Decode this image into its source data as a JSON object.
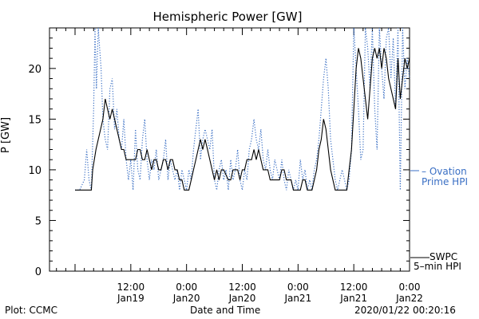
{
  "chart_data": {
    "type": "line",
    "title": "Hemispheric Power [GW]",
    "xlabel": "Date and Time",
    "ylabel": "P [GW]",
    "ylim": [
      0,
      24
    ],
    "yticks": [
      0,
      5,
      10,
      15,
      20
    ],
    "xlim_hours": [
      0,
      60
    ],
    "x_unit": "hours since 2020-01-19 00:00 UT (first plotted time ≈ Jan18 18:30)",
    "xticks": [
      {
        "hour": 12,
        "label_time": "12:00",
        "label_date": "Jan19"
      },
      {
        "hour": 24,
        "label_time": "0:00",
        "label_date": "Jan20"
      },
      {
        "hour": 36,
        "label_time": "12:00",
        "label_date": "Jan20"
      },
      {
        "hour": 48,
        "label_time": "0:00",
        "label_date": "Jan21"
      },
      {
        "hour": 60,
        "label_time": "12:00",
        "label_date": "Jan21"
      },
      {
        "hour": 72,
        "label_time": "0:00",
        "label_date": "Jan22"
      }
    ],
    "legend_placement": "right",
    "grid": false,
    "series": [
      {
        "name": "Ovation Prime HPI",
        "style": "dotted",
        "color": "#3a6fc4",
        "points": [
          [
            0,
            8
          ],
          [
            1,
            8
          ],
          [
            2,
            9
          ],
          [
            2.5,
            12
          ],
          [
            3,
            9
          ],
          [
            3.5,
            8
          ],
          [
            4,
            16
          ],
          [
            4.3,
            24
          ],
          [
            4.6,
            18
          ],
          [
            5,
            24
          ],
          [
            5.3,
            22
          ],
          [
            5.6,
            20
          ],
          [
            6,
            15
          ],
          [
            6.5,
            13
          ],
          [
            7,
            12
          ],
          [
            7.5,
            18
          ],
          [
            8,
            19
          ],
          [
            8.5,
            14
          ],
          [
            9,
            16
          ],
          [
            9.5,
            13
          ],
          [
            10,
            12
          ],
          [
            10.5,
            15
          ],
          [
            11,
            11
          ],
          [
            11.5,
            9
          ],
          [
            12,
            11
          ],
          [
            12.5,
            8
          ],
          [
            13,
            14
          ],
          [
            13.5,
            10
          ],
          [
            14,
            9
          ],
          [
            14.5,
            13
          ],
          [
            15,
            15
          ],
          [
            15.5,
            11
          ],
          [
            16,
            9
          ],
          [
            16.5,
            11
          ],
          [
            17,
            10
          ],
          [
            17.5,
            12
          ],
          [
            18,
            9
          ],
          [
            18.5,
            10
          ],
          [
            19,
            11
          ],
          [
            19.5,
            13
          ],
          [
            20,
            9
          ],
          [
            20.5,
            11
          ],
          [
            21,
            10
          ],
          [
            21.5,
            9
          ],
          [
            22,
            10
          ],
          [
            22.5,
            8
          ],
          [
            23,
            10
          ],
          [
            23.5,
            9
          ],
          [
            24,
            8
          ],
          [
            24.5,
            10
          ],
          [
            25,
            9
          ],
          [
            25.5,
            12
          ],
          [
            26,
            14
          ],
          [
            26.5,
            16
          ],
          [
            27,
            11
          ],
          [
            27.5,
            13
          ],
          [
            28,
            14
          ],
          [
            28.5,
            13
          ],
          [
            29,
            12
          ],
          [
            29.5,
            14
          ],
          [
            30,
            9
          ],
          [
            30.5,
            8
          ],
          [
            31,
            10
          ],
          [
            31.5,
            11
          ],
          [
            32,
            9
          ],
          [
            32.5,
            10
          ],
          [
            33,
            8
          ],
          [
            33.5,
            11
          ],
          [
            34,
            9
          ],
          [
            34.5,
            10
          ],
          [
            35,
            12
          ],
          [
            35.5,
            9
          ],
          [
            36,
            8
          ],
          [
            36.5,
            10
          ],
          [
            37,
            9
          ],
          [
            37.5,
            12
          ],
          [
            38,
            13
          ],
          [
            38.5,
            15
          ],
          [
            39,
            13
          ],
          [
            39.5,
            12
          ],
          [
            40,
            14
          ],
          [
            40.5,
            11
          ],
          [
            41,
            10
          ],
          [
            41.5,
            12
          ],
          [
            42,
            10
          ],
          [
            42.5,
            9
          ],
          [
            43,
            11
          ],
          [
            43.5,
            10
          ],
          [
            44,
            9
          ],
          [
            44.5,
            11
          ],
          [
            45,
            9
          ],
          [
            45.5,
            8
          ],
          [
            46,
            10
          ],
          [
            46.5,
            9
          ],
          [
            47,
            8
          ],
          [
            47.5,
            9
          ],
          [
            48,
            8
          ],
          [
            48.5,
            11
          ],
          [
            49,
            9
          ],
          [
            49.5,
            10
          ],
          [
            50,
            8
          ],
          [
            50.5,
            9
          ],
          [
            51,
            8
          ],
          [
            51.5,
            10
          ],
          [
            52,
            11
          ],
          [
            52.5,
            13
          ],
          [
            53,
            16
          ],
          [
            53.5,
            19
          ],
          [
            54,
            21
          ],
          [
            54.5,
            18
          ],
          [
            55,
            13
          ],
          [
            55.5,
            11
          ],
          [
            56,
            9
          ],
          [
            56.5,
            8
          ],
          [
            57,
            9
          ],
          [
            57.5,
            10
          ],
          [
            58,
            9
          ],
          [
            58.5,
            8
          ],
          [
            59,
            9
          ],
          [
            59.5,
            12
          ],
          [
            60,
            24
          ],
          [
            60.5,
            20
          ],
          [
            61,
            16
          ],
          [
            61.5,
            11
          ],
          [
            62,
            12
          ],
          [
            62.5,
            24
          ],
          [
            63,
            22
          ],
          [
            63.5,
            18
          ],
          [
            64,
            24
          ],
          [
            64.5,
            16
          ],
          [
            65,
            12
          ],
          [
            65.5,
            24
          ],
          [
            66,
            20
          ],
          [
            66.5,
            17
          ],
          [
            67,
            23
          ],
          [
            67.5,
            24
          ],
          [
            68,
            19
          ],
          [
            68.5,
            23
          ],
          [
            69,
            16
          ],
          [
            69.5,
            24
          ],
          [
            70,
            8
          ],
          [
            70.5,
            24
          ],
          [
            71,
            18
          ],
          [
            71.5,
            21
          ],
          [
            72,
            19
          ]
        ]
      },
      {
        "name": "SWPC 5-min HPI",
        "style": "solid",
        "color": "#000000",
        "points": [
          [
            0,
            8
          ],
          [
            3,
            8
          ],
          [
            3.5,
            8
          ],
          [
            3.8,
            10
          ],
          [
            4.5,
            12
          ],
          [
            5.5,
            14
          ],
          [
            6,
            15
          ],
          [
            6.5,
            17
          ],
          [
            7,
            16
          ],
          [
            7.5,
            15
          ],
          [
            8,
            16
          ],
          [
            8.5,
            15
          ],
          [
            9,
            14
          ],
          [
            9.5,
            13
          ],
          [
            10,
            12
          ],
          [
            10.5,
            12
          ],
          [
            11,
            11
          ],
          [
            13,
            11
          ],
          [
            13.5,
            12
          ],
          [
            14,
            12
          ],
          [
            14.5,
            11
          ],
          [
            15,
            11
          ],
          [
            15.5,
            12
          ],
          [
            16,
            11
          ],
          [
            16.5,
            10
          ],
          [
            17,
            11
          ],
          [
            17.5,
            11
          ],
          [
            18,
            10
          ],
          [
            18.5,
            10
          ],
          [
            19,
            11
          ],
          [
            19.5,
            11
          ],
          [
            20,
            10
          ],
          [
            20.5,
            11
          ],
          [
            21,
            11
          ],
          [
            21.5,
            10
          ],
          [
            22,
            10
          ],
          [
            22.5,
            9
          ],
          [
            23,
            9
          ],
          [
            23.5,
            8
          ],
          [
            24.5,
            8
          ],
          [
            25,
            9
          ],
          [
            25.5,
            10
          ],
          [
            26,
            11
          ],
          [
            26.5,
            12
          ],
          [
            27,
            13
          ],
          [
            27.5,
            12
          ],
          [
            28,
            13
          ],
          [
            28.5,
            12
          ],
          [
            29,
            11
          ],
          [
            29.5,
            10
          ],
          [
            30,
            9
          ],
          [
            30.5,
            10
          ],
          [
            31,
            9
          ],
          [
            31.5,
            10
          ],
          [
            32,
            10
          ],
          [
            33,
            9
          ],
          [
            33.5,
            9
          ],
          [
            34,
            10
          ],
          [
            35,
            10
          ],
          [
            35.5,
            9
          ],
          [
            36,
            10
          ],
          [
            36.5,
            10
          ],
          [
            37,
            11
          ],
          [
            38,
            11
          ],
          [
            38.5,
            12
          ],
          [
            39,
            11
          ],
          [
            39.5,
            12
          ],
          [
            40,
            11
          ],
          [
            40.5,
            10
          ],
          [
            41,
            10
          ],
          [
            41.5,
            10
          ],
          [
            42,
            9
          ],
          [
            44,
            9
          ],
          [
            44.5,
            10
          ],
          [
            45,
            10
          ],
          [
            45.5,
            9
          ],
          [
            46,
            9
          ],
          [
            46.5,
            9
          ],
          [
            47,
            8
          ],
          [
            48.5,
            8
          ],
          [
            49,
            9
          ],
          [
            49.5,
            9
          ],
          [
            50,
            8
          ],
          [
            51,
            8
          ],
          [
            51.5,
            9
          ],
          [
            52,
            10
          ],
          [
            52.5,
            12
          ],
          [
            53,
            13
          ],
          [
            53.5,
            15
          ],
          [
            54,
            14
          ],
          [
            54.5,
            12
          ],
          [
            55,
            10
          ],
          [
            55.5,
            9
          ],
          [
            56,
            8
          ],
          [
            58.5,
            8
          ],
          [
            59,
            10
          ],
          [
            59.5,
            12
          ],
          [
            60,
            16
          ],
          [
            60.5,
            20
          ],
          [
            61,
            22
          ],
          [
            61.5,
            21
          ],
          [
            62,
            19
          ],
          [
            62.5,
            17
          ],
          [
            63,
            15
          ],
          [
            63.5,
            18
          ],
          [
            64,
            21
          ],
          [
            64.5,
            22
          ],
          [
            65,
            21
          ],
          [
            65.5,
            22
          ],
          [
            66,
            20
          ],
          [
            66.5,
            22
          ],
          [
            67,
            21
          ],
          [
            67.5,
            19
          ],
          [
            68,
            18
          ],
          [
            68.5,
            17
          ],
          [
            69,
            16
          ],
          [
            69.5,
            21
          ],
          [
            70,
            17
          ],
          [
            70.5,
            19
          ],
          [
            71,
            21
          ],
          [
            71.5,
            20
          ],
          [
            72,
            21
          ]
        ]
      }
    ]
  },
  "legend": {
    "ovation_line1": "Ovation",
    "ovation_line2": "Prime HPI",
    "swpc_line1": "SWPC",
    "swpc_line2": "5–min HPI"
  },
  "footer": {
    "left": "Plot: CCMC",
    "right": "2020/01/22 00:20:16"
  }
}
